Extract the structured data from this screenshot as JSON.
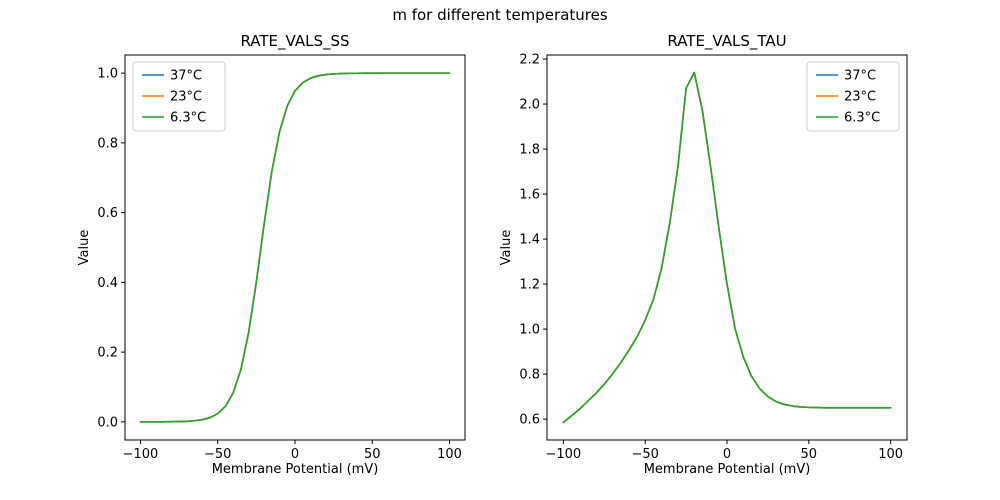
{
  "figure": {
    "suptitle": "m for different temperatures"
  },
  "chart_data": [
    {
      "type": "line",
      "title": "RATE_VALS_SS",
      "xlabel": "Membrane Potential (mV)",
      "ylabel": "Value",
      "xlim": [
        -110,
        110
      ],
      "ylim": [
        -0.052,
        1.052
      ],
      "grid": false,
      "legend_position": "upper-left",
      "xticks": [
        {
          "v": -100,
          "label": "−100"
        },
        {
          "v": -50,
          "label": "−50"
        },
        {
          "v": 0,
          "label": "0"
        },
        {
          "v": 50,
          "label": "50"
        },
        {
          "v": 100,
          "label": "100"
        }
      ],
      "yticks": [
        {
          "v": 0.0,
          "label": "0.0"
        },
        {
          "v": 0.2,
          "label": "0.2"
        },
        {
          "v": 0.4,
          "label": "0.4"
        },
        {
          "v": 0.6,
          "label": "0.6"
        },
        {
          "v": 0.8,
          "label": "0.8"
        },
        {
          "v": 1.0,
          "label": "1.0"
        }
      ],
      "x": [
        -100,
        -95,
        -90,
        -85,
        -80,
        -75,
        -70,
        -65,
        -60,
        -55,
        -50,
        -45,
        -40,
        -35,
        -30,
        -25,
        -20,
        -15,
        -10,
        -5,
        0,
        5,
        10,
        15,
        20,
        25,
        30,
        35,
        40,
        45,
        50,
        55,
        60,
        65,
        70,
        75,
        80,
        85,
        90,
        95,
        100
      ],
      "series": [
        {
          "name": "37°C",
          "color": "#1f77b4",
          "values": [
            0.0,
            0.0001,
            0.0001,
            0.0002,
            0.0004,
            0.0009,
            0.0017,
            0.0032,
            0.0062,
            0.012,
            0.0234,
            0.0445,
            0.0832,
            0.1502,
            0.2562,
            0.4013,
            0.5663,
            0.718,
            0.832,
            0.9062,
            0.9494,
            0.9727,
            0.9855,
            0.9923,
            0.9959,
            0.9979,
            0.9989,
            0.9994,
            0.9997,
            0.9998,
            0.9999,
            1.0,
            1.0,
            1.0,
            1.0,
            1.0,
            1.0,
            1.0,
            1.0,
            1.0,
            1.0
          ]
        },
        {
          "name": "23°C",
          "color": "#ff7f0e",
          "values": [
            0.0,
            0.0001,
            0.0001,
            0.0002,
            0.0004,
            0.0009,
            0.0017,
            0.0032,
            0.0062,
            0.012,
            0.0234,
            0.0445,
            0.0832,
            0.1502,
            0.2562,
            0.4013,
            0.5663,
            0.718,
            0.832,
            0.9062,
            0.9494,
            0.9727,
            0.9855,
            0.9923,
            0.9959,
            0.9979,
            0.9989,
            0.9994,
            0.9997,
            0.9998,
            0.9999,
            1.0,
            1.0,
            1.0,
            1.0,
            1.0,
            1.0,
            1.0,
            1.0,
            1.0,
            1.0
          ]
        },
        {
          "name": "6.3°C",
          "color": "#2ca02c",
          "values": [
            0.0,
            0.0001,
            0.0001,
            0.0002,
            0.0004,
            0.0009,
            0.0017,
            0.0032,
            0.0062,
            0.012,
            0.0234,
            0.0445,
            0.0832,
            0.1502,
            0.2562,
            0.4013,
            0.5663,
            0.718,
            0.832,
            0.9062,
            0.9494,
            0.9727,
            0.9855,
            0.9923,
            0.9959,
            0.9979,
            0.9989,
            0.9994,
            0.9997,
            0.9998,
            0.9999,
            1.0,
            1.0,
            1.0,
            1.0,
            1.0,
            1.0,
            1.0,
            1.0,
            1.0,
            1.0
          ]
        }
      ]
    },
    {
      "type": "line",
      "title": "RATE_VALS_TAU",
      "xlabel": "Membrane Potential (mV)",
      "ylabel": "Value",
      "xlim": [
        -110,
        110
      ],
      "ylim": [
        0.507,
        2.218
      ],
      "grid": false,
      "legend_position": "upper-right",
      "xticks": [
        {
          "v": -100,
          "label": "−100"
        },
        {
          "v": -50,
          "label": "−50"
        },
        {
          "v": 0,
          "label": "0"
        },
        {
          "v": 50,
          "label": "50"
        },
        {
          "v": 100,
          "label": "100"
        }
      ],
      "yticks": [
        {
          "v": 0.6,
          "label": "0.6"
        },
        {
          "v": 0.8,
          "label": "0.8"
        },
        {
          "v": 1.0,
          "label": "1.0"
        },
        {
          "v": 1.2,
          "label": "1.2"
        },
        {
          "v": 1.4,
          "label": "1.4"
        },
        {
          "v": 1.6,
          "label": "1.6"
        },
        {
          "v": 1.8,
          "label": "1.8"
        },
        {
          "v": 2.0,
          "label": "2.0"
        },
        {
          "v": 2.2,
          "label": "2.2"
        }
      ],
      "x": [
        -100,
        -95,
        -90,
        -85,
        -80,
        -75,
        -70,
        -65,
        -60,
        -55,
        -50,
        -45,
        -40,
        -35,
        -30,
        -25,
        -20,
        -15,
        -10,
        -5,
        0,
        5,
        10,
        15,
        20,
        25,
        30,
        35,
        40,
        45,
        50,
        55,
        60,
        65,
        70,
        75,
        80,
        85,
        90,
        95,
        100
      ],
      "series": [
        {
          "name": "37°C",
          "color": "#1f77b4",
          "values": [
            0.585,
            0.615,
            0.645,
            0.68,
            0.715,
            0.755,
            0.8,
            0.85,
            0.905,
            0.965,
            1.04,
            1.13,
            1.27,
            1.47,
            1.72,
            2.07,
            2.14,
            1.97,
            1.72,
            1.45,
            1.2,
            1.0,
            0.875,
            0.79,
            0.735,
            0.7,
            0.678,
            0.665,
            0.658,
            0.654,
            0.652,
            0.651,
            0.65,
            0.65,
            0.65,
            0.65,
            0.65,
            0.65,
            0.65,
            0.65,
            0.65
          ]
        },
        {
          "name": "23°C",
          "color": "#ff7f0e",
          "values": [
            0.585,
            0.615,
            0.645,
            0.68,
            0.715,
            0.755,
            0.8,
            0.85,
            0.905,
            0.965,
            1.04,
            1.13,
            1.27,
            1.47,
            1.72,
            2.07,
            2.14,
            1.97,
            1.72,
            1.45,
            1.2,
            1.0,
            0.875,
            0.79,
            0.735,
            0.7,
            0.678,
            0.665,
            0.658,
            0.654,
            0.652,
            0.651,
            0.65,
            0.65,
            0.65,
            0.65,
            0.65,
            0.65,
            0.65,
            0.65,
            0.65
          ]
        },
        {
          "name": "6.3°C",
          "color": "#2ca02c",
          "values": [
            0.585,
            0.615,
            0.645,
            0.68,
            0.715,
            0.755,
            0.8,
            0.85,
            0.905,
            0.965,
            1.04,
            1.13,
            1.27,
            1.47,
            1.72,
            2.07,
            2.14,
            1.97,
            1.72,
            1.45,
            1.2,
            1.0,
            0.875,
            0.79,
            0.735,
            0.7,
            0.678,
            0.665,
            0.658,
            0.654,
            0.652,
            0.651,
            0.65,
            0.65,
            0.65,
            0.65,
            0.65,
            0.65,
            0.65,
            0.65,
            0.65
          ]
        }
      ]
    }
  ]
}
